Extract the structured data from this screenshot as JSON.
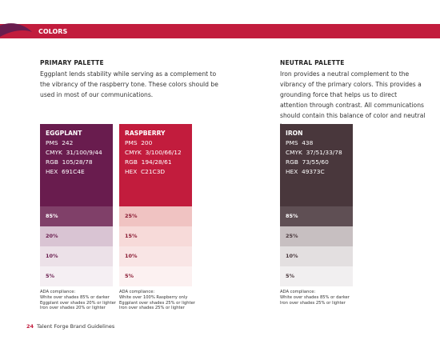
{
  "header": {
    "title": "COLORS"
  },
  "primary": {
    "title": "PRIMARY PALETTE",
    "text": "Eggplant lends stability while serving as a complement to the vibrancy of the raspberry tone. These colors should be used in most of our communications."
  },
  "neutral": {
    "title": "NEUTRAL PALETTE",
    "text": "Iron provides a neutral complement to the vibrancy of the primary colors. This provides a grounding force that helps us to direct attention through contrast. All communications should contain this balance of color and neutral tones."
  },
  "swatches": [
    {
      "name": "EGGPLANT",
      "lines": [
        "PMS  242",
        "CMYK  31/100/9/44",
        "RGB  105/28/78",
        "HEX  691C4E"
      ],
      "tints": [
        "85%",
        "20%",
        "10%",
        "5%"
      ],
      "ada": [
        "ADA compliance:",
        "White over shades 85% or darker",
        "Eggplant over shades 20% or lighter",
        "Iron over shades 20% or lighter"
      ]
    },
    {
      "name": "RASPBERRY",
      "lines": [
        "PMS  200",
        "CMYK  3/100/66/12",
        "RGB  194/28/61",
        "HEX  C21C3D"
      ],
      "tints": [
        "25%",
        "15%",
        "10%",
        "5%"
      ],
      "ada": [
        "ADA compliance:",
        "White over 100% Raspberry only",
        "Eggplant over shades 25% or lighter",
        "Iron over shades 25% or lighter"
      ]
    },
    {
      "name": "IRON",
      "lines": [
        "PMS  438",
        "CMYK  37/51/33/78",
        "RGB  73/55/60",
        "HEX  49373C"
      ],
      "tints": [
        "85%",
        "25%",
        "10%",
        "5%"
      ],
      "ada": [
        "ADA compliance:",
        "White over shades 85% or darker",
        "Iron over shades 25% or lighter"
      ]
    }
  ],
  "footer": {
    "page": "24",
    "text": "Talent Forge Brand Guidelines"
  }
}
